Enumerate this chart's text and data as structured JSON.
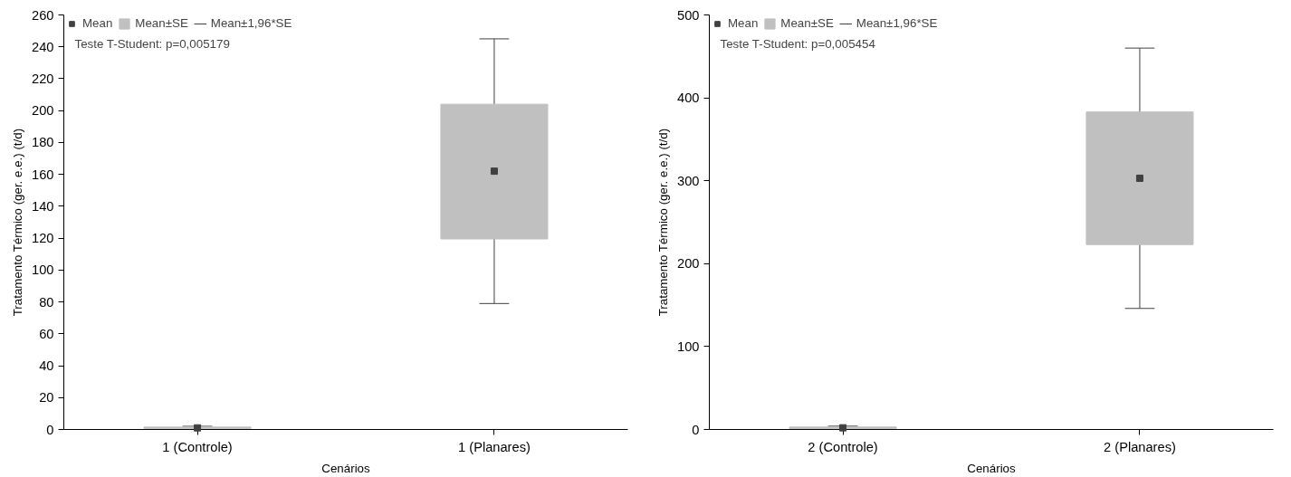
{
  "chart_data": [
    {
      "type": "scatter",
      "xlabel": "Cenários",
      "ylabel": "Tratamento Térmico (ger. e.e.) (t/d)",
      "categories": [
        "1 (Controle)",
        "1 (Planares)"
      ],
      "ylim": [
        0,
        260
      ],
      "yticks": [
        0,
        20,
        40,
        60,
        80,
        100,
        120,
        140,
        160,
        180,
        200,
        220,
        240,
        260
      ],
      "grid": false,
      "legend": "top left",
      "annotations": [
        "Mean±1,96*SE",
        "Teste T-Student: p=0,005179"
      ],
      "series": [
        {
          "name": "Mean",
          "marker": "square",
          "color": "#404040",
          "values": [
            1,
            162
          ],
          "errors": [
            [
              0,
              2
            ],
            [
              79,
              245
            ]
          ]
        },
        {
          "name": "Mean±SE",
          "type": "bar",
          "color": "#c0c0c0",
          "base": [
            0.5,
            119.5
          ],
          "values": [
            1,
            84.5
          ]
        }
      ]
    },
    {
      "type": "scatter",
      "xlabel": "Cenários",
      "ylabel": "Tratamento Térmico (ger. e.e.) (t/d)",
      "categories": [
        "2 (Controle)",
        "2 (Planares)"
      ],
      "ylim": [
        0,
        500
      ],
      "yticks": [
        0,
        100,
        200,
        300,
        400,
        500
      ],
      "grid": false,
      "legend": "top left",
      "annotations": [
        "Mean±1,96*SE",
        "Teste T-Student: p=0,005454"
      ],
      "series": [
        {
          "name": "Mean",
          "marker": "square",
          "color": "#404040",
          "values": [
            2,
            303
          ],
          "errors": [
            [
              0,
              4
            ],
            [
              146,
              460
            ]
          ]
        },
        {
          "name": "Mean±SE",
          "type": "bar",
          "color": "#c0c0c0",
          "base": [
            1,
            223
          ],
          "values": [
            2,
            160
          ]
        }
      ]
    }
  ]
}
